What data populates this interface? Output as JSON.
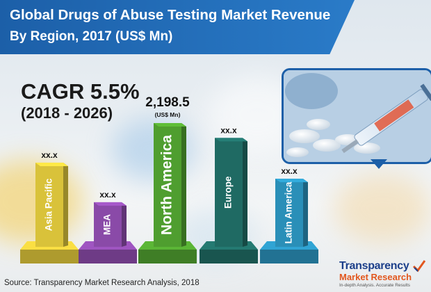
{
  "title_line1": "Global Drugs of Abuse Testing Market Revenue",
  "title_line2": "By Region, 2017 (US$ Mn)",
  "cagr": "CAGR 5.5%",
  "cagr_period": "(2018 - 2026)",
  "source": "Source: Transparency Market Research Analysis, 2018",
  "logo": {
    "line1": "Transparency",
    "line2": "Market Research",
    "line3": "In-depth Analysis. Accurate Results"
  },
  "colors": {
    "title_band": "#1c5fa8",
    "asia_pacific": "#d9c23a",
    "mea": "#8a4aa8",
    "north_america": "#4f9e2f",
    "europe": "#1f6a63",
    "latin_america": "#2a8fb8"
  },
  "chart_data": {
    "type": "bar",
    "title": "Global Drugs of Abuse Testing Market Revenue By Region, 2017 (US$ Mn)",
    "categories": [
      "Asia Pacific",
      "MEA",
      "North America",
      "Europe",
      "Latin America"
    ],
    "value_labels": [
      "xx.x",
      "xx.x",
      "2,198.5",
      "xx.x",
      "xx.x"
    ],
    "unit_label": "(US$ Mn)",
    "relative_heights": [
      0.68,
      0.36,
      1.0,
      0.88,
      0.55
    ],
    "known_values": {
      "North America": 2198.5
    }
  }
}
